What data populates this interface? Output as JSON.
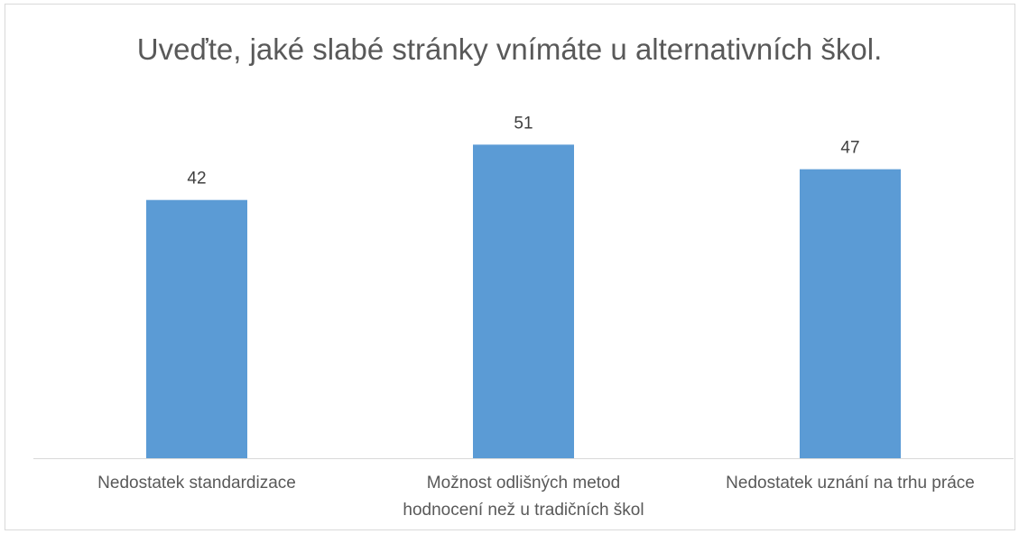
{
  "chart_data": {
    "type": "bar",
    "title": "Uveďte, jaké slabé stránky vnímáte u alternativních škol.",
    "categories": [
      [
        "Nedostatek standardizace"
      ],
      [
        "Možnost odlišných metod",
        "hodnocení než u tradičních škol"
      ],
      [
        "Nedostatek uznání na trhu práce"
      ]
    ],
    "values": [
      42,
      51,
      47
    ],
    "data_labels": [
      "42",
      "51",
      "47"
    ],
    "ylim": [
      0,
      60
    ],
    "grid": false,
    "legend": "none",
    "bar_color": "#5b9bd5",
    "axis_color": "#d9d9d9"
  }
}
